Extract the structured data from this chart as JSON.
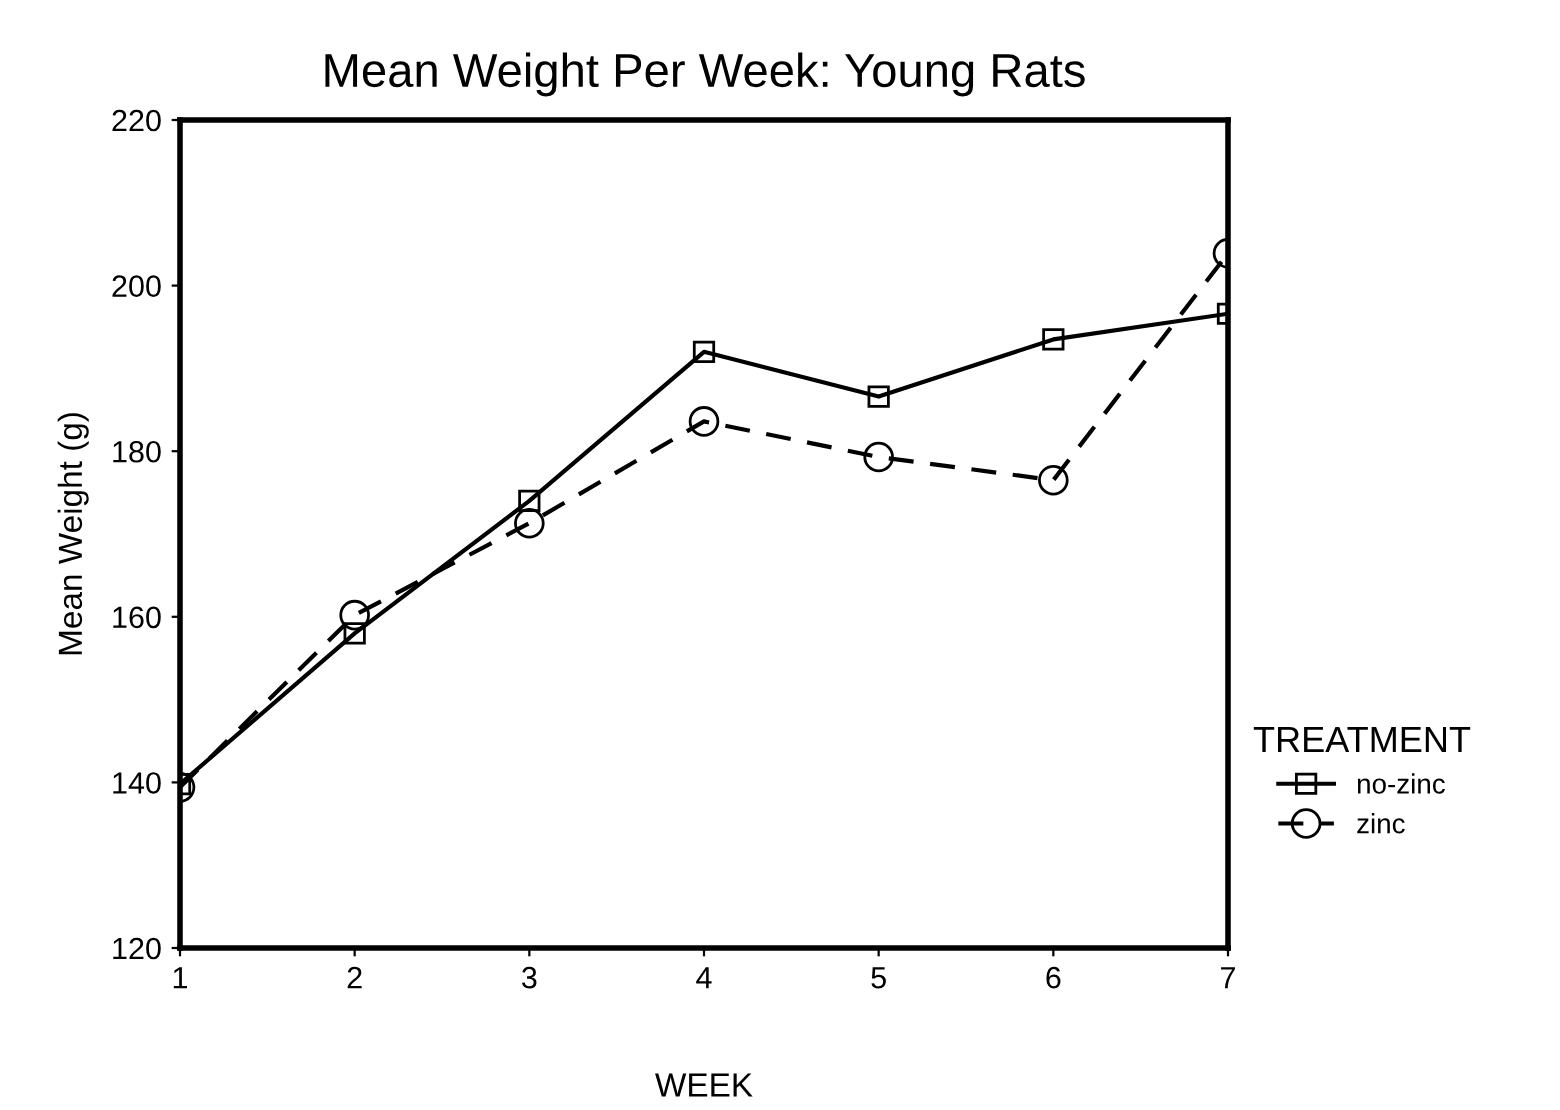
{
  "chart_data": {
    "type": "line",
    "title": "Mean Weight Per Week: Young Rats",
    "xlabel": "WEEK",
    "ylabel": "Mean Weight (g)",
    "legend_title": "TREATMENT",
    "x": [
      1,
      2,
      3,
      4,
      5,
      6,
      7
    ],
    "series": [
      {
        "name": "no-zinc",
        "color": "#000000",
        "marker": "square",
        "line_style": "solid",
        "values": [
          139.8,
          158,
          174,
          192,
          186.6,
          193.5,
          196.6
        ]
      },
      {
        "name": "zinc",
        "color": "#000000",
        "marker": "circle",
        "line_style": "dashed",
        "values": [
          139.4,
          160.2,
          171.3,
          183.6,
          179.3,
          176.5,
          203.9
        ]
      }
    ],
    "xlim": [
      1,
      7
    ],
    "xticks": [
      1,
      2,
      3,
      4,
      5,
      6,
      7
    ],
    "ylim": [
      120,
      220
    ],
    "yticks": [
      120,
      140,
      160,
      180,
      200,
      220
    ],
    "grid": false,
    "legend": "right"
  }
}
